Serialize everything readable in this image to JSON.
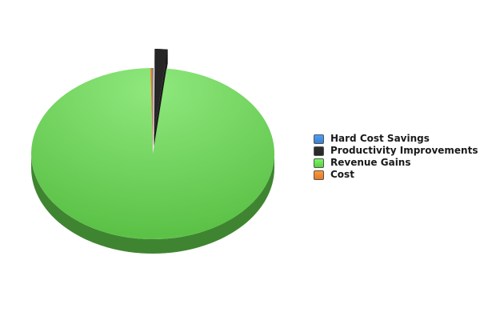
{
  "chart_data": {
    "type": "pie",
    "three_d": true,
    "legend_position": "right",
    "categories": [
      "Hard Cost Savings",
      "Productivity Improvements",
      "Revenue Gains",
      "Cost"
    ],
    "values": [
      0.1,
      1.7,
      97.9,
      0.3
    ],
    "colors": [
      "#3d7fc9",
      "#262626",
      "#5fc94a",
      "#e07a2a"
    ],
    "exploded": [
      false,
      true,
      false,
      false
    ]
  }
}
